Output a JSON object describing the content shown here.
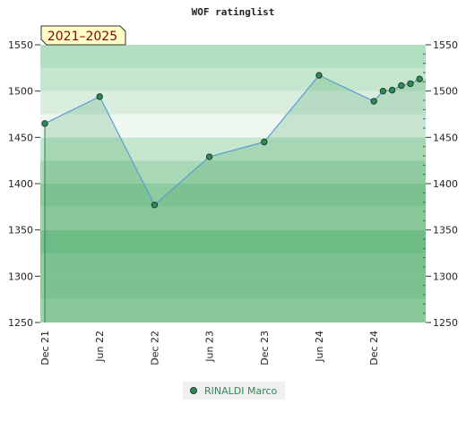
{
  "chart_data": {
    "type": "line",
    "title": "WOF ratinglist",
    "annotation": "2021–2025",
    "ylim": [
      1250,
      1550
    ],
    "y_ticks": [
      1250,
      1300,
      1350,
      1400,
      1450,
      1500,
      1550
    ],
    "x_ticks": [
      "Dec 21",
      "Jun 22",
      "Dec 22",
      "Jun 23",
      "Dec 23",
      "Jun 24",
      "Dec 24"
    ],
    "series": [
      {
        "name": "RINALDI Marco",
        "color": "#2e8b57",
        "line_color": "#5b9bd5",
        "points": [
          {
            "x": "2021-12",
            "y": 1465
          },
          {
            "x": "2022-06",
            "y": 1494
          },
          {
            "x": "2022-12",
            "y": 1377
          },
          {
            "x": "2023-06",
            "y": 1429
          },
          {
            "x": "2023-12",
            "y": 1445
          },
          {
            "x": "2024-06",
            "y": 1517
          },
          {
            "x": "2024-12",
            "y": 1489
          },
          {
            "x": "2025-01",
            "y": 1500
          },
          {
            "x": "2025-02",
            "y": 1501
          },
          {
            "x": "2025-03",
            "y": 1506
          },
          {
            "x": "2025-04",
            "y": 1508
          },
          {
            "x": "2025-05",
            "y": 1513
          }
        ]
      }
    ],
    "grid": true,
    "legend_position": "bottom"
  }
}
